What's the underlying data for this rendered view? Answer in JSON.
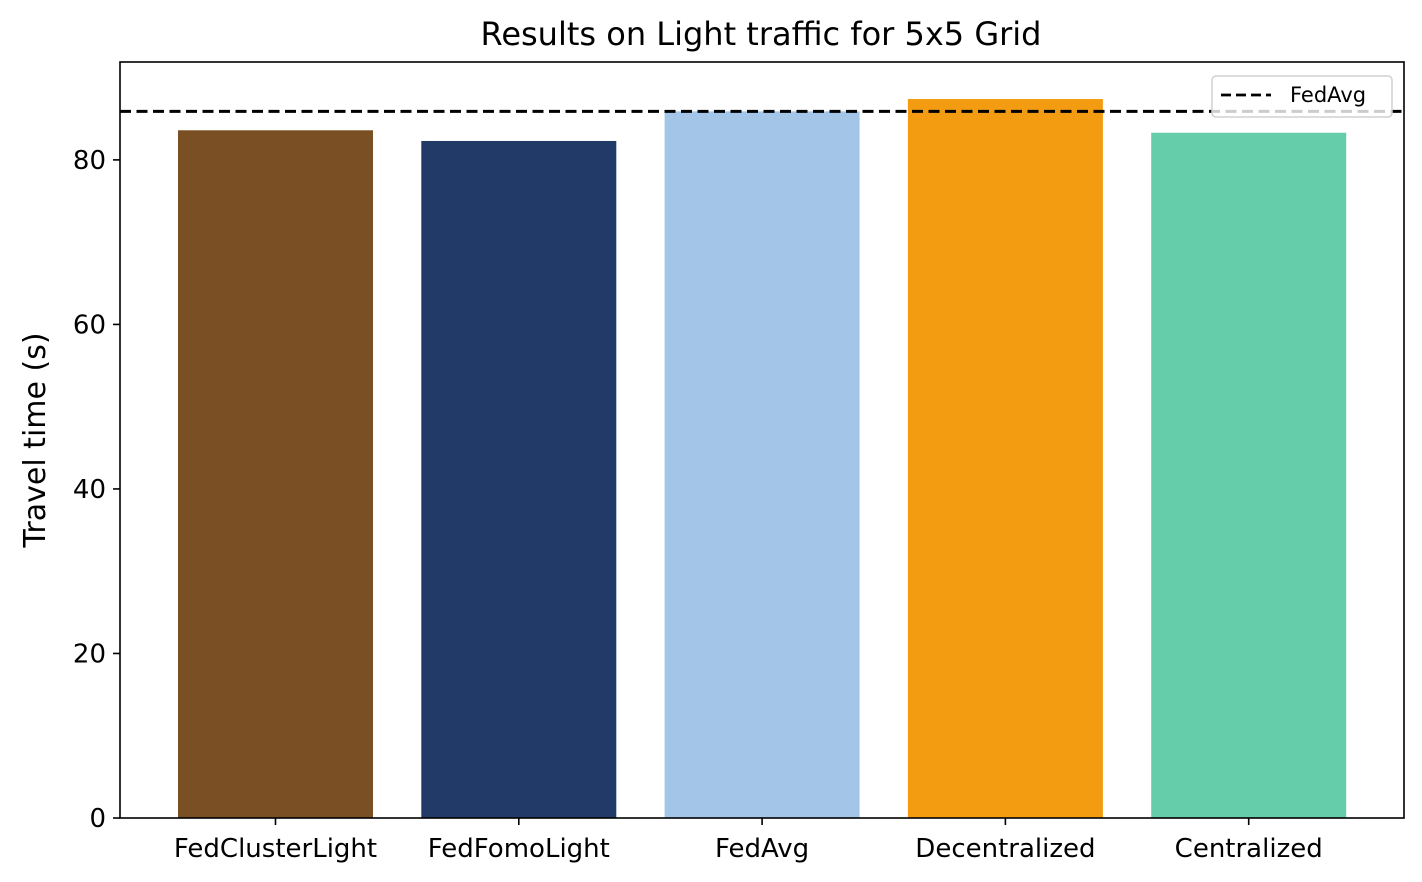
{
  "chart_data": {
    "type": "bar",
    "title": "Results on Light traffic for 5x5 Grid",
    "xlabel": "",
    "ylabel": "Travel time (s)",
    "categories": [
      "FedClusterLight",
      "FedFomoLight",
      "FedAvg",
      "Decentralized",
      "Centralized"
    ],
    "values": [
      83.6,
      82.3,
      85.9,
      87.4,
      83.3
    ],
    "colors": [
      "#7a4f24",
      "#213a68",
      "#a3c6e8",
      "#f39c12",
      "#66cdaa"
    ],
    "ylim": [
      0,
      91.9
    ],
    "yticks": [
      0,
      20,
      40,
      60,
      80
    ],
    "grid": false,
    "reference_line": {
      "label": "FedAvg",
      "value": 85.9,
      "style": "dashed",
      "color": "#000000"
    },
    "legend": {
      "placement": "top-right",
      "entries": [
        "FedAvg"
      ]
    }
  }
}
